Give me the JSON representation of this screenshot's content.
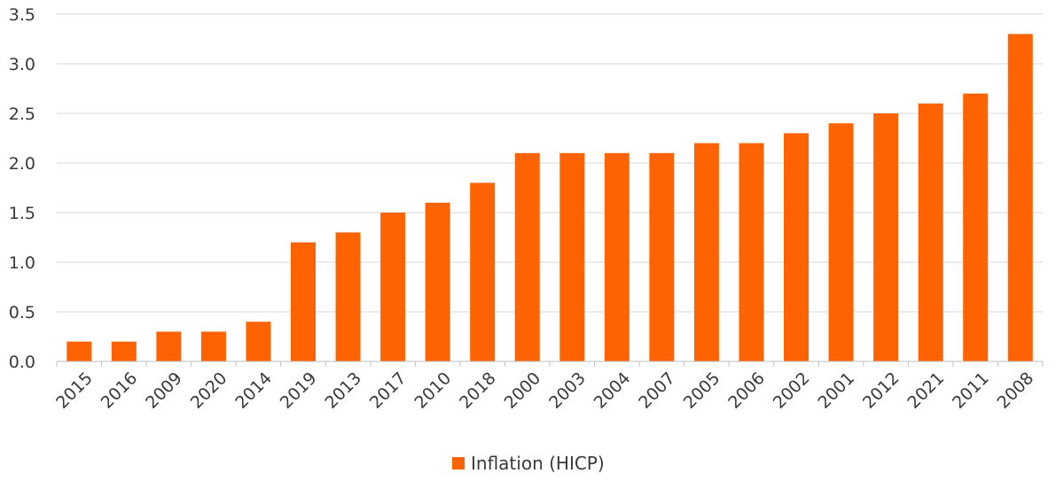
{
  "chart_data": {
    "type": "bar",
    "categories": [
      "2015",
      "2016",
      "2009",
      "2020",
      "2014",
      "2019",
      "2013",
      "2017",
      "2010",
      "2018",
      "2000",
      "2003",
      "2004",
      "2007",
      "2005",
      "2006",
      "2002",
      "2001",
      "2012",
      "2021",
      "2011",
      "2008"
    ],
    "series": [
      {
        "name": "Inflation (HICP)",
        "color": "#ff6200",
        "values": [
          0.2,
          0.2,
          0.3,
          0.3,
          0.4,
          1.2,
          1.3,
          1.5,
          1.6,
          1.8,
          2.1,
          2.1,
          2.1,
          2.1,
          2.2,
          2.2,
          2.3,
          2.4,
          2.5,
          2.6,
          2.7,
          3.3
        ]
      }
    ],
    "ylim": [
      0,
      3.5
    ],
    "yticks": [
      "0.0",
      "0.5",
      "1.0",
      "1.5",
      "2.0",
      "2.5",
      "3.0",
      "3.5"
    ],
    "grid": true,
    "legend_position": "bottom-center",
    "title": "",
    "xlabel": "",
    "ylabel": ""
  }
}
